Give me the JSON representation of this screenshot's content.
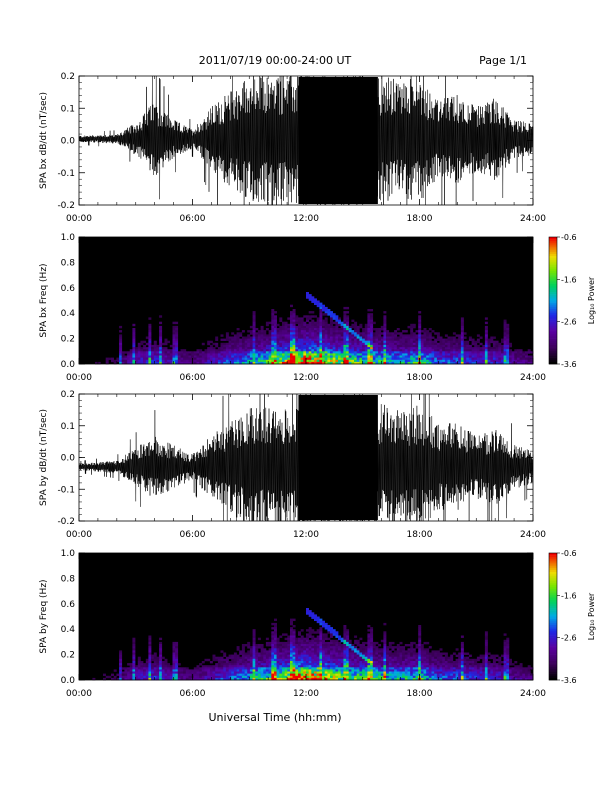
{
  "header": {
    "title": "2011/07/19  00:00-24:00 UT",
    "page": "Page 1/1"
  },
  "footer": {
    "xlabel": "Universal Time (hh:mm)"
  },
  "colorbar": {
    "label": "Log₁₀ Power",
    "ticks": [
      "-0.6",
      "-1.6",
      "-2.6",
      "-3.6"
    ],
    "range": [
      -3.6,
      -0.6
    ]
  },
  "chart_data": [
    {
      "type": "line",
      "ylabel": "SPA bx dB/dt (nT/sec)",
      "xlim": [
        0,
        24
      ],
      "ylim": [
        -0.2,
        0.2
      ],
      "xticks": [
        "00:00",
        "06:00",
        "12:00",
        "18:00",
        "24:00"
      ],
      "yticks": [
        "0.2",
        "0.1",
        "0.0",
        "-0.1",
        "-0.2"
      ],
      "envelope": {
        "x_hours": [
          0,
          2,
          3,
          4,
          5,
          6,
          7,
          8,
          9,
          10,
          11,
          12,
          13,
          14,
          15,
          16,
          17,
          18,
          19,
          20,
          21,
          22,
          23,
          24
        ],
        "amplitude": [
          0.01,
          0.015,
          0.05,
          0.12,
          0.06,
          0.03,
          0.1,
          0.15,
          0.2,
          0.2,
          0.2,
          0.2,
          0.2,
          0.2,
          0.2,
          0.2,
          0.18,
          0.2,
          0.12,
          0.14,
          0.1,
          0.13,
          0.06,
          0.05
        ],
        "offset": 0.005
      },
      "color": "#000000"
    },
    {
      "type": "heatmap",
      "ylabel": "SPA bx Freq (Hz)",
      "xlim": [
        0,
        24
      ],
      "ylim": [
        0,
        1.0
      ],
      "xticks": [
        "00:00",
        "06:00",
        "12:00",
        "18:00",
        "24:00"
      ],
      "yticks": [
        "1.0",
        "0.8",
        "0.6",
        "0.4",
        "0.2",
        "0.0"
      ],
      "zlim": [
        -3.6,
        -0.6
      ]
    },
    {
      "type": "line",
      "ylabel": "SPA by dB/dt (nT/sec)",
      "xlim": [
        0,
        24
      ],
      "ylim": [
        -0.2,
        0.2
      ],
      "xticks": [
        "00:00",
        "06:00",
        "12:00",
        "18:00",
        "24:00"
      ],
      "yticks": [
        "0.2",
        "0.1",
        "0.0",
        "-0.1",
        "-0.2"
      ],
      "envelope": {
        "x_hours": [
          0,
          2,
          3,
          4,
          5,
          6,
          7,
          8,
          9,
          10,
          11,
          12,
          13,
          14,
          15,
          16,
          17,
          18,
          19,
          20,
          21,
          22,
          23,
          24
        ],
        "amplitude": [
          0.01,
          0.02,
          0.06,
          0.1,
          0.07,
          0.04,
          0.1,
          0.14,
          0.2,
          0.2,
          0.2,
          0.2,
          0.2,
          0.2,
          0.2,
          0.2,
          0.18,
          0.2,
          0.14,
          0.14,
          0.1,
          0.12,
          0.07,
          0.05
        ],
        "offset": -0.03
      },
      "color": "#000000"
    },
    {
      "type": "heatmap",
      "ylabel": "SPA by Freq (Hz)",
      "xlim": [
        0,
        24
      ],
      "ylim": [
        0,
        1.0
      ],
      "xticks": [
        "00:00",
        "06:00",
        "12:00",
        "18:00",
        "24:00"
      ],
      "yticks": [
        "1.0",
        "0.8",
        "0.6",
        "0.4",
        "0.2",
        "0.0"
      ],
      "zlim": [
        -3.6,
        -0.6
      ]
    }
  ]
}
